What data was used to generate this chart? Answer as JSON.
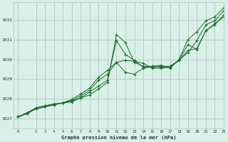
{
  "background_color": "#d8f0e8",
  "grid_color": "#b0c8c0",
  "line_color": "#1a6b2a",
  "title": "Graphe pression niveau de la mer (hPa)",
  "xlim": [
    -0.5,
    23
  ],
  "ylim": [
    1026.5,
    1032.9
  ],
  "yticks": [
    1027,
    1028,
    1029,
    1030,
    1031,
    1032
  ],
  "xticks": [
    0,
    2,
    3,
    4,
    5,
    6,
    7,
    8,
    9,
    10,
    11,
    12,
    13,
    14,
    15,
    16,
    17,
    18,
    19,
    20,
    21,
    22,
    23
  ],
  "series": [
    [
      1027.1,
      1027.25,
      1027.55,
      1027.65,
      1027.75,
      1027.8,
      1027.9,
      1028.05,
      1028.2,
      1028.5,
      1028.85,
      1031.25,
      1030.85,
      1029.85,
      1029.65,
      1029.65,
      1029.7,
      1029.55,
      1030.0,
      1031.0,
      1031.4,
      1031.95,
      1032.15,
      1032.6
    ],
    [
      1027.1,
      1027.25,
      1027.5,
      1027.6,
      1027.7,
      1027.8,
      1027.85,
      1028.05,
      1028.35,
      1028.65,
      1028.95,
      1030.95,
      1030.25,
      1029.95,
      1029.6,
      1029.6,
      1029.65,
      1029.65,
      1029.95,
      1030.35,
      1030.95,
      1031.75,
      1031.95,
      1032.45
    ],
    [
      1027.1,
      1027.3,
      1027.5,
      1027.6,
      1027.7,
      1027.8,
      1027.92,
      1028.15,
      1028.45,
      1028.95,
      1029.25,
      1029.85,
      1029.35,
      1029.25,
      1029.55,
      1029.65,
      1029.6,
      1029.65,
      1029.95,
      1030.45,
      1030.55,
      1031.45,
      1031.75,
      1032.25
    ],
    [
      1027.1,
      1027.3,
      1027.55,
      1027.65,
      1027.72,
      1027.8,
      1027.98,
      1028.25,
      1028.55,
      1029.1,
      1029.45,
      1029.85,
      1029.95,
      1029.9,
      1029.8,
      1029.55,
      1029.55,
      1029.6,
      1029.95,
      1030.75,
      1030.5,
      1031.45,
      1031.8,
      1032.15
    ]
  ]
}
